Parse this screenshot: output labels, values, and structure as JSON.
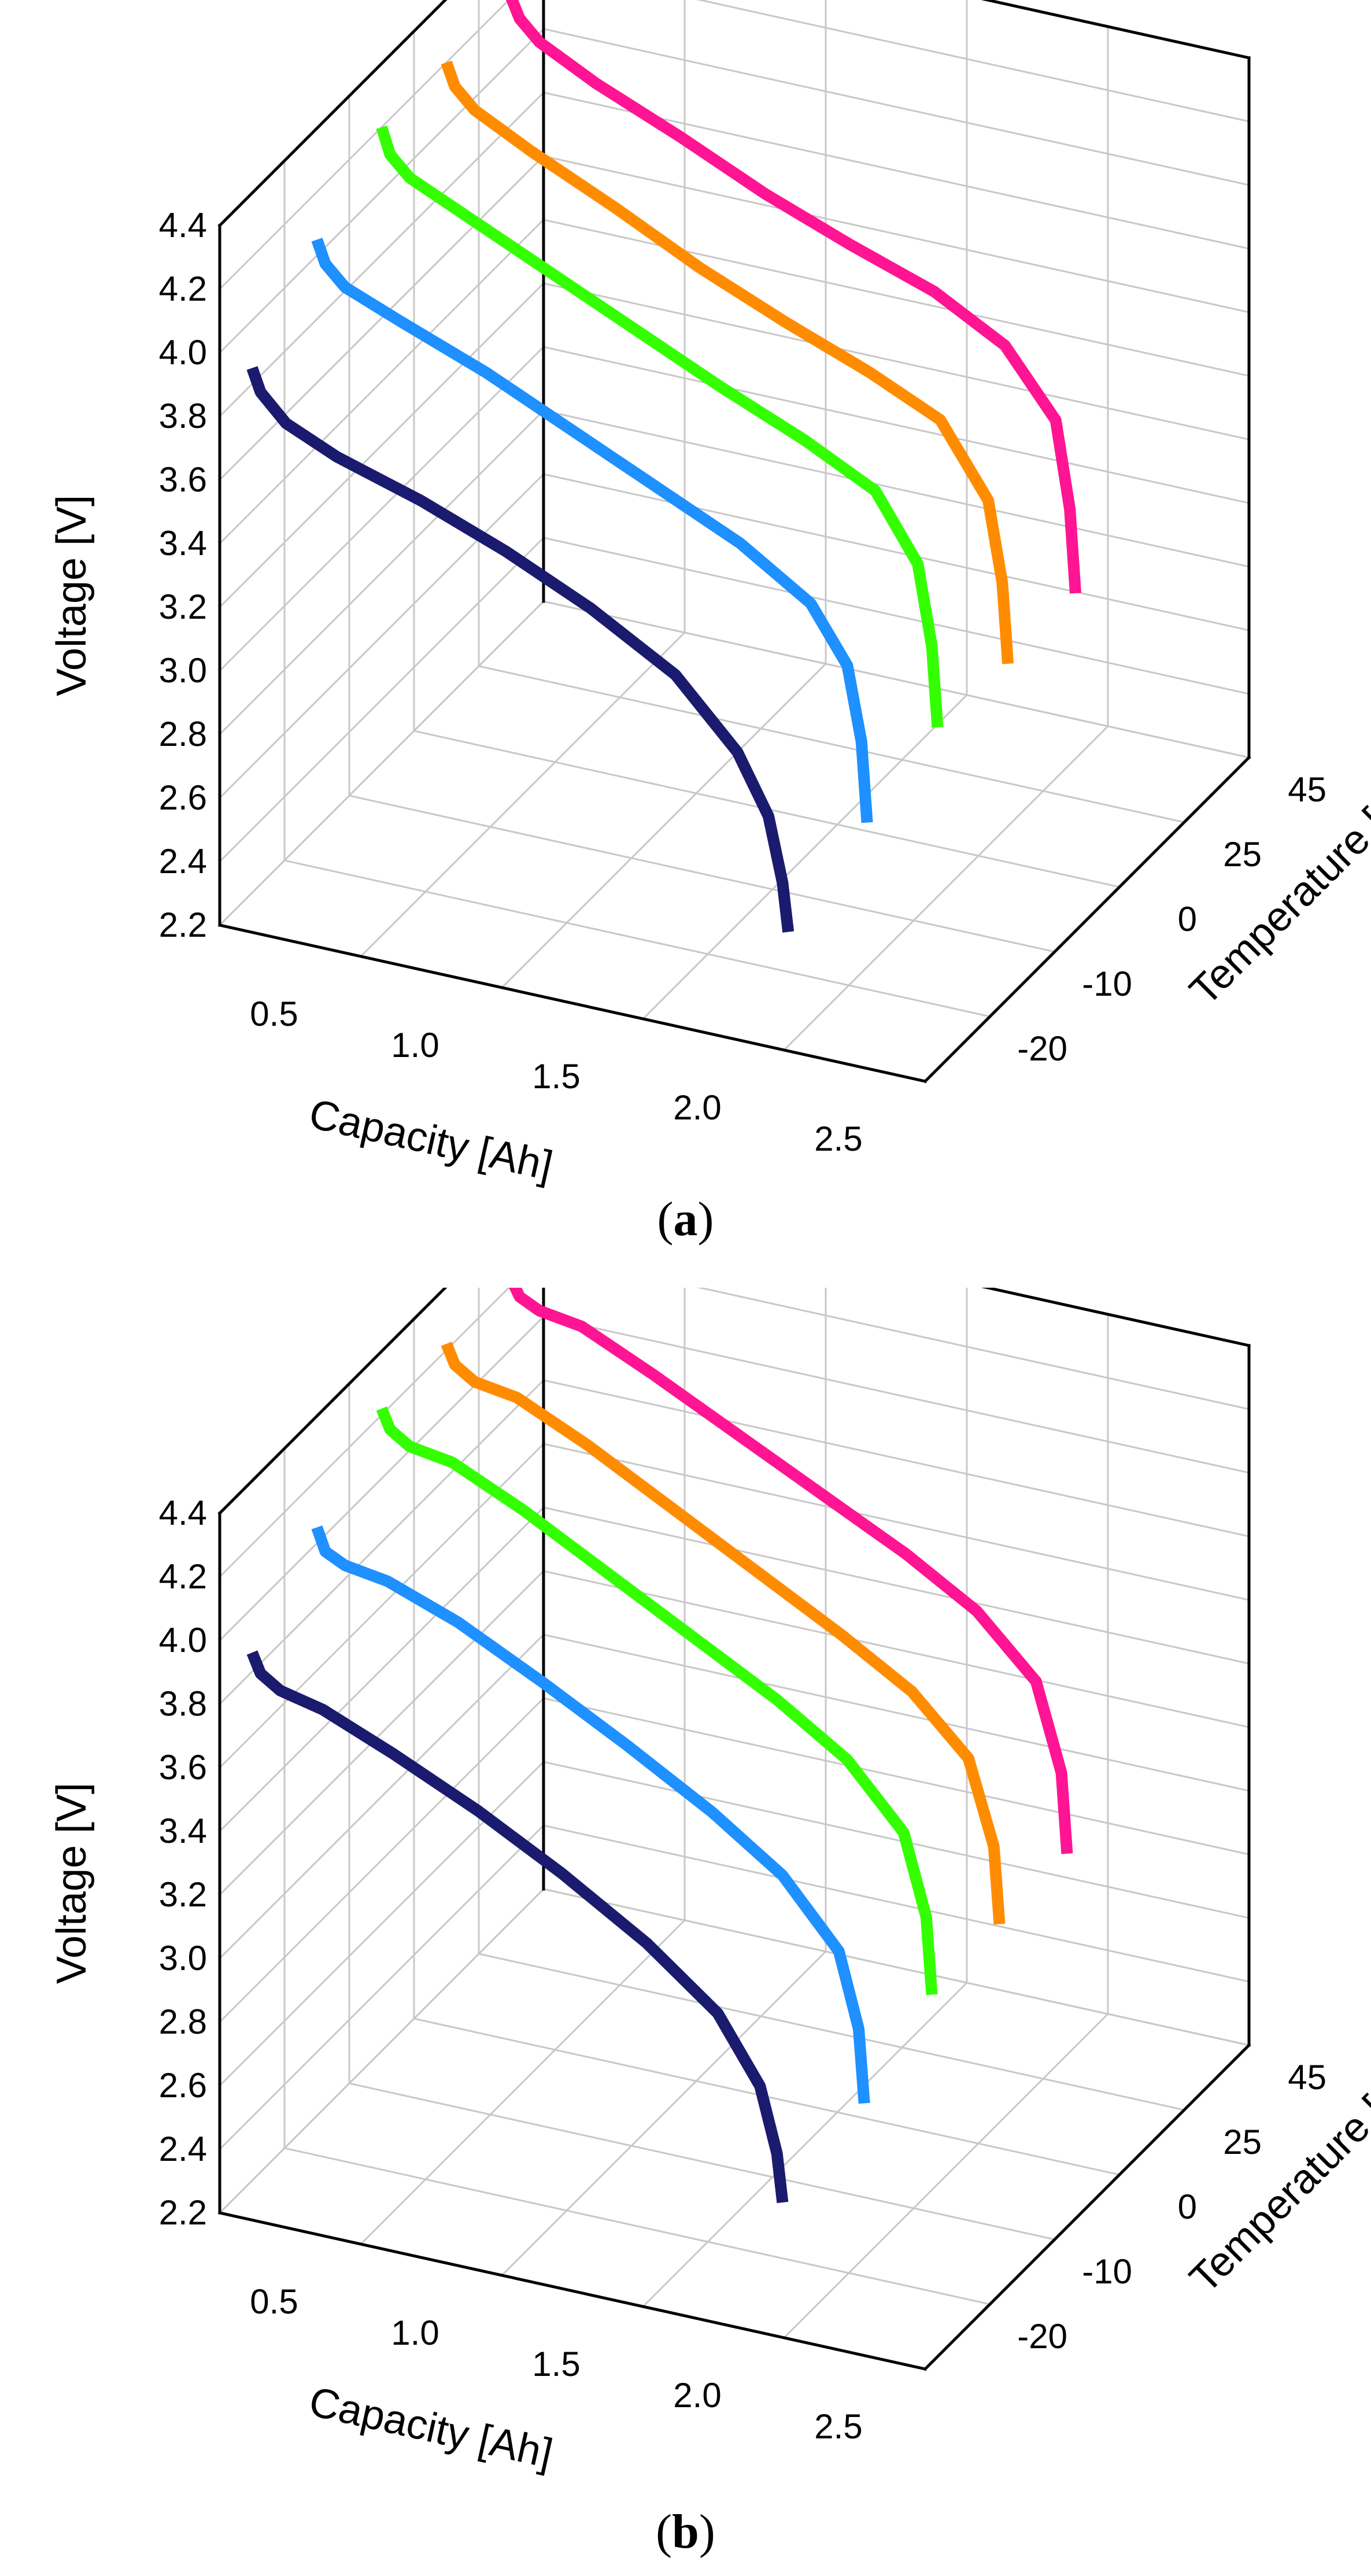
{
  "chart_data": [
    {
      "type": "line3d",
      "panel_label": "a",
      "xlabel": "Capacity [Ah]",
      "ylabel": "Temperature [C]",
      "zlabel": "Voltage [V]",
      "x_ticks": [
        "0.5",
        "1.0",
        "1.5",
        "2.0",
        "2.5"
      ],
      "y_ticks": [
        "-20",
        "-10",
        "0",
        "25",
        "45"
      ],
      "z_ticks": [
        "2.2",
        "2.4",
        "2.6",
        "2.8",
        "3.0",
        "3.2",
        "3.4",
        "3.6",
        "3.8",
        "4.0",
        "4.2",
        "4.4"
      ],
      "xlim": [
        0,
        2.5
      ],
      "zlim": [
        2.2,
        4.4
      ],
      "grid": true,
      "series": [
        {
          "name": "-20",
          "temp_index": 0,
          "color": "#1a1a6e",
          "x": [
            0,
            0.03,
            0.12,
            0.3,
            0.6,
            0.9,
            1.2,
            1.5,
            1.72,
            1.83,
            1.88,
            1.9
          ],
          "z": [
            3.85,
            3.78,
            3.7,
            3.63,
            3.55,
            3.45,
            3.33,
            3.18,
            2.98,
            2.8,
            2.6,
            2.45
          ]
        },
        {
          "name": "-10",
          "temp_index": 1,
          "color": "#1e90ff",
          "x": [
            0,
            0.03,
            0.1,
            0.3,
            0.6,
            0.9,
            1.2,
            1.5,
            1.75,
            1.88,
            1.93,
            1.95
          ],
          "z": [
            4.05,
            3.98,
            3.92,
            3.85,
            3.75,
            3.63,
            3.51,
            3.39,
            3.25,
            3.08,
            2.85,
            2.6
          ]
        },
        {
          "name": "0",
          "temp_index": 2,
          "color": "#33ff00",
          "x": [
            0,
            0.03,
            0.1,
            0.3,
            0.6,
            0.9,
            1.2,
            1.5,
            1.75,
            1.9,
            1.95,
            1.97
          ],
          "z": [
            4.2,
            4.12,
            4.06,
            3.98,
            3.86,
            3.74,
            3.62,
            3.51,
            3.4,
            3.2,
            2.95,
            2.7
          ]
        },
        {
          "name": "25",
          "temp_index": 3,
          "color": "#ff8c00",
          "x": [
            0,
            0.03,
            0.1,
            0.3,
            0.6,
            0.9,
            1.2,
            1.5,
            1.75,
            1.92,
            1.97,
            1.99
          ],
          "z": [
            4.2,
            4.13,
            4.07,
            3.98,
            3.86,
            3.73,
            3.62,
            3.52,
            3.42,
            3.2,
            2.95,
            2.7
          ]
        },
        {
          "name": "45",
          "temp_index": 4,
          "color": "#ff1493",
          "x": [
            0,
            0.03,
            0.1,
            0.3,
            0.6,
            0.9,
            1.2,
            1.5,
            1.75,
            1.93,
            1.98,
            2.0
          ],
          "z": [
            4.2,
            4.14,
            4.08,
            3.99,
            3.88,
            3.76,
            3.66,
            3.57,
            3.45,
            3.25,
            2.98,
            2.72
          ]
        }
      ]
    },
    {
      "type": "line3d",
      "panel_label": "b",
      "xlabel": "Capacity [Ah]",
      "ylabel": "Temperature [C]",
      "zlabel": "Voltage [V]",
      "x_ticks": [
        "0.5",
        "1.0",
        "1.5",
        "2.0",
        "2.5"
      ],
      "y_ticks": [
        "-20",
        "-10",
        "0",
        "25",
        "45"
      ],
      "z_ticks": [
        "2.2",
        "2.4",
        "2.6",
        "2.8",
        "3.0",
        "3.2",
        "3.4",
        "3.6",
        "3.8",
        "4.0",
        "4.2",
        "4.4"
      ],
      "xlim": [
        0,
        2.5
      ],
      "zlim": [
        2.2,
        4.4
      ],
      "grid": true,
      "series": [
        {
          "name": "-20",
          "temp_index": 0,
          "color": "#1a1a6e",
          "x": [
            0,
            0.03,
            0.1,
            0.25,
            0.5,
            0.8,
            1.1,
            1.4,
            1.65,
            1.8,
            1.86,
            1.88
          ],
          "z": [
            3.86,
            3.8,
            3.76,
            3.73,
            3.64,
            3.52,
            3.38,
            3.22,
            3.05,
            2.85,
            2.65,
            2.5
          ]
        },
        {
          "name": "-10",
          "temp_index": 1,
          "color": "#1e90ff",
          "x": [
            0,
            0.03,
            0.1,
            0.25,
            0.5,
            0.8,
            1.1,
            1.4,
            1.65,
            1.85,
            1.92,
            1.94
          ],
          "z": [
            4.05,
            3.98,
            3.95,
            3.93,
            3.85,
            3.72,
            3.58,
            3.43,
            3.28,
            3.08,
            2.85,
            2.62
          ]
        },
        {
          "name": "0",
          "temp_index": 2,
          "color": "#33ff00",
          "x": [
            0,
            0.03,
            0.1,
            0.25,
            0.5,
            0.8,
            1.1,
            1.4,
            1.65,
            1.85,
            1.93,
            1.95
          ],
          "z": [
            4.22,
            4.16,
            4.12,
            4.1,
            4.0,
            3.86,
            3.72,
            3.58,
            3.44,
            3.25,
            3.0,
            2.76
          ]
        },
        {
          "name": "25",
          "temp_index": 3,
          "color": "#ff8c00",
          "x": [
            0,
            0.03,
            0.1,
            0.25,
            0.5,
            0.8,
            1.1,
            1.4,
            1.65,
            1.85,
            1.94,
            1.96
          ],
          "z": [
            4.22,
            4.16,
            4.12,
            4.1,
            4.0,
            3.86,
            3.72,
            3.58,
            3.45,
            3.28,
            3.02,
            2.78
          ]
        },
        {
          "name": "45",
          "temp_index": 4,
          "color": "#ff1493",
          "x": [
            0,
            0.03,
            0.1,
            0.25,
            0.5,
            0.8,
            1.1,
            1.4,
            1.65,
            1.86,
            1.95,
            1.97
          ],
          "z": [
            4.22,
            4.17,
            4.14,
            4.12,
            4.02,
            3.89,
            3.76,
            3.63,
            3.5,
            3.32,
            3.05,
            2.8
          ]
        }
      ]
    }
  ],
  "captions": {
    "a": "a",
    "b": "b"
  }
}
